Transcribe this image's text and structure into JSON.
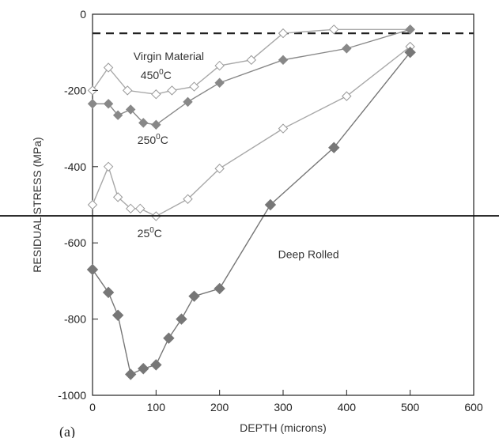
{
  "chart_data": {
    "type": "line",
    "panel_label": "(a)",
    "xlabel": "DEPTH (microns)",
    "ylabel": "RESIDUAL STRESS (MPa)",
    "xlim": [
      0,
      600
    ],
    "ylim": [
      -1000,
      0
    ],
    "x_ticks": [
      0,
      100,
      200,
      300,
      400,
      500,
      600
    ],
    "y_ticks": [
      0,
      -200,
      -400,
      -600,
      -800,
      -1000
    ],
    "grid": false,
    "reference_line": {
      "label": "Virgin Material",
      "y": -50
    },
    "series": [
      {
        "name": "450°C",
        "label_base": "450",
        "label_sup": "0",
        "label_unit": "C",
        "marker": "open-diamond",
        "color": "#a8a8a8",
        "x": [
          0,
          25,
          55,
          100,
          125,
          160,
          200,
          250,
          300,
          380,
          500
        ],
        "y": [
          -200,
          -140,
          -200,
          -210,
          -200,
          -190,
          -135,
          -120,
          -50,
          -40,
          -40
        ]
      },
      {
        "name": "250°C",
        "label_base": "250",
        "label_sup": "0",
        "label_unit": "C",
        "marker": "filled-diamond",
        "color": "#888888",
        "x": [
          0,
          25,
          40,
          60,
          80,
          100,
          150,
          200,
          300,
          400,
          500
        ],
        "y": [
          -235,
          -235,
          -265,
          -250,
          -285,
          -290,
          -230,
          -180,
          -120,
          -90,
          -40
        ]
      },
      {
        "name": "25°C",
        "label_base": "25",
        "label_sup": "0",
        "label_unit": "C",
        "marker": "open-diamond",
        "color": "#a8a8a8",
        "x": [
          0,
          25,
          40,
          60,
          75,
          100,
          150,
          200,
          300,
          400,
          500
        ],
        "y": [
          -500,
          -400,
          -480,
          -510,
          -510,
          -530,
          -485,
          -405,
          -300,
          -215,
          -85
        ]
      },
      {
        "name": "Deep Rolled",
        "marker": "filled-diamond-large",
        "color": "#777777",
        "x": [
          0,
          25,
          40,
          60,
          80,
          100,
          120,
          140,
          160,
          200,
          280,
          380,
          500
        ],
        "y": [
          -670,
          -730,
          -790,
          -945,
          -930,
          -920,
          -850,
          -800,
          -740,
          -720,
          -500,
          -350,
          -100
        ]
      }
    ]
  }
}
